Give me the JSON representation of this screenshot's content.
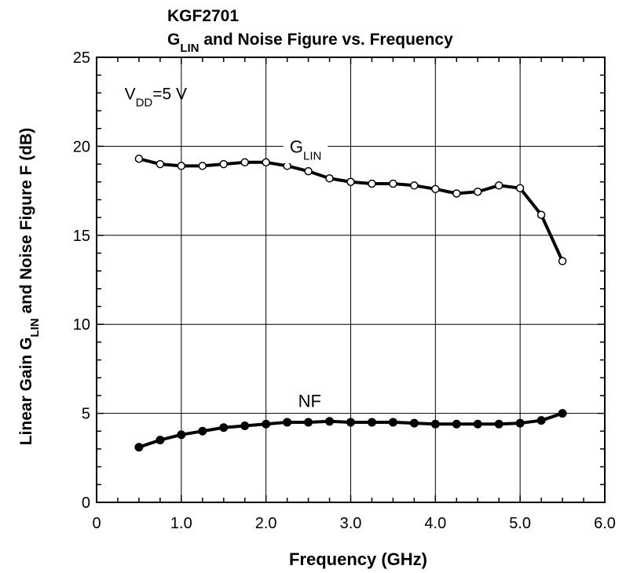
{
  "chart_data": {
    "type": "line",
    "title": {
      "line1": "KGF2701",
      "line2_parts": [
        {
          "text": "G",
          "sub": false
        },
        {
          "text": "LIN",
          "sub": true
        },
        {
          "text": " and Noise Figure vs. Frequency",
          "sub": false
        }
      ]
    },
    "xlabel": "Frequency  (GHz)",
    "ylabel_parts": [
      {
        "text": "Linear Gain  G",
        "sub": false
      },
      {
        "text": "LIN",
        "sub": true
      },
      {
        "text": " and Noise Figure  F  (dB)",
        "sub": false
      }
    ],
    "xlim": [
      0,
      6
    ],
    "ylim": [
      0,
      25
    ],
    "x_ticks": [
      {
        "value": 0,
        "label": "0"
      },
      {
        "value": 1,
        "label": "1.0"
      },
      {
        "value": 2,
        "label": "2.0"
      },
      {
        "value": 3,
        "label": "3.0"
      },
      {
        "value": 4,
        "label": "4.0"
      },
      {
        "value": 5,
        "label": "5.0"
      },
      {
        "value": 6,
        "label": "6.0"
      }
    ],
    "y_ticks": [
      {
        "value": 0,
        "label": "0"
      },
      {
        "value": 5,
        "label": "5"
      },
      {
        "value": 10,
        "label": "10"
      },
      {
        "value": 15,
        "label": "15"
      },
      {
        "value": 20,
        "label": "20"
      },
      {
        "value": 25,
        "label": "25"
      }
    ],
    "grid": true,
    "annotation_condition": {
      "parts": [
        {
          "text": "V",
          "sub": false
        },
        {
          "text": "DD",
          "sub": true
        },
        {
          "text": "=5 V",
          "sub": false
        }
      ],
      "x": 0.33,
      "y": 23.0
    },
    "series": [
      {
        "label_parts": [
          {
            "text": "G",
            "sub": false
          },
          {
            "text": "LIN",
            "sub": true
          }
        ],
        "label_x": 2.28,
        "label_y": 20.0,
        "marker": "open-circle",
        "x": [
          0.5,
          0.75,
          1.0,
          1.25,
          1.5,
          1.75,
          2.0,
          2.25,
          2.5,
          2.75,
          3.0,
          3.25,
          3.5,
          3.75,
          4.0,
          4.25,
          4.5,
          4.75,
          5.0,
          5.25,
          5.5
        ],
        "y": [
          19.3,
          19.0,
          18.9,
          18.9,
          19.0,
          19.1,
          19.1,
          18.9,
          18.6,
          18.2,
          18.0,
          17.9,
          17.9,
          17.8,
          17.6,
          17.35,
          17.45,
          17.8,
          17.65,
          16.15,
          13.55
        ]
      },
      {
        "label_parts": [
          {
            "text": "NF",
            "sub": false
          }
        ],
        "label_x": 2.38,
        "label_y": 5.7,
        "marker": "filled-circle",
        "x": [
          0.5,
          0.75,
          1.0,
          1.25,
          1.5,
          1.75,
          2.0,
          2.25,
          2.5,
          2.75,
          3.0,
          3.25,
          3.5,
          3.75,
          4.0,
          4.25,
          4.5,
          4.75,
          5.0,
          5.25,
          5.5
        ],
        "y": [
          3.1,
          3.5,
          3.8,
          4.0,
          4.2,
          4.3,
          4.4,
          4.5,
          4.5,
          4.55,
          4.5,
          4.5,
          4.5,
          4.45,
          4.4,
          4.4,
          4.4,
          4.4,
          4.45,
          4.6,
          5.0
        ]
      }
    ]
  }
}
